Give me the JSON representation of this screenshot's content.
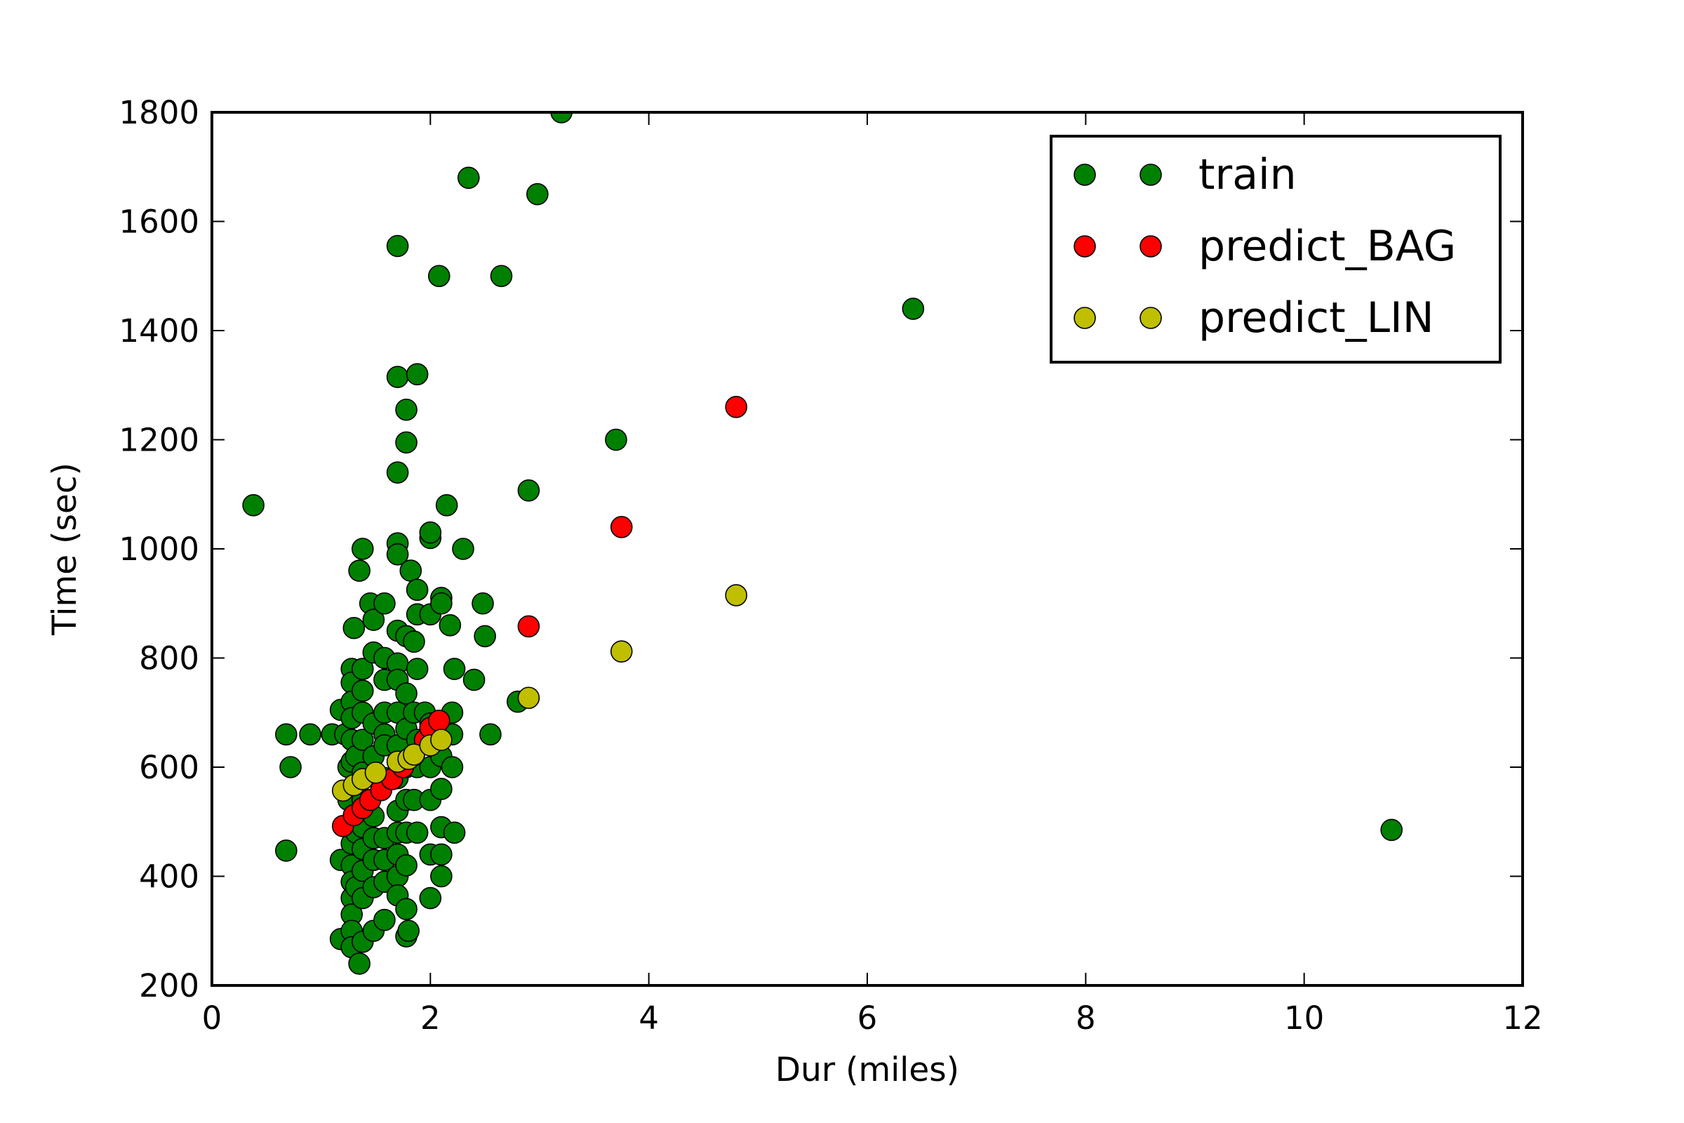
{
  "chart_data": {
    "type": "scatter",
    "title": "",
    "xlabel": "Dur (miles)",
    "ylabel": "Time (sec)",
    "xlim": [
      0,
      12
    ],
    "ylim": [
      200,
      1800
    ],
    "xticks": [
      "0",
      "2",
      "4",
      "6",
      "8",
      "10",
      "12"
    ],
    "yticks": [
      "200",
      "400",
      "600",
      "800",
      "1000",
      "1200",
      "1400",
      "1600",
      "1800"
    ],
    "grid": false,
    "legend_position": "top-right",
    "series": [
      {
        "name": "train",
        "color": "#008000",
        "points": [
          [
            0.38,
            1080
          ],
          [
            0.68,
            660
          ],
          [
            0.68,
            447
          ],
          [
            0.72,
            600
          ],
          [
            0.9,
            660
          ],
          [
            1.1,
            660
          ],
          [
            1.18,
            705
          ],
          [
            1.18,
            430
          ],
          [
            1.18,
            285
          ],
          [
            1.22,
            660
          ],
          [
            1.25,
            600
          ],
          [
            1.25,
            540
          ],
          [
            1.28,
            780
          ],
          [
            1.28,
            755
          ],
          [
            1.28,
            720
          ],
          [
            1.28,
            690
          ],
          [
            1.28,
            650
          ],
          [
            1.28,
            610
          ],
          [
            1.28,
            500
          ],
          [
            1.28,
            460
          ],
          [
            1.28,
            420
          ],
          [
            1.28,
            390
          ],
          [
            1.28,
            360
          ],
          [
            1.28,
            330
          ],
          [
            1.28,
            300
          ],
          [
            1.28,
            270
          ],
          [
            1.3,
            855
          ],
          [
            1.32,
            620
          ],
          [
            1.32,
            480
          ],
          [
            1.32,
            380
          ],
          [
            1.35,
            240
          ],
          [
            1.35,
            960
          ],
          [
            1.38,
            1000
          ],
          [
            1.38,
            780
          ],
          [
            1.38,
            740
          ],
          [
            1.38,
            700
          ],
          [
            1.38,
            650
          ],
          [
            1.38,
            590
          ],
          [
            1.38,
            540
          ],
          [
            1.38,
            490
          ],
          [
            1.38,
            450
          ],
          [
            1.38,
            410
          ],
          [
            1.38,
            360
          ],
          [
            1.38,
            280
          ],
          [
            1.45,
            900
          ],
          [
            1.48,
            870
          ],
          [
            1.48,
            810
          ],
          [
            1.48,
            680
          ],
          [
            1.48,
            620
          ],
          [
            1.48,
            510
          ],
          [
            1.48,
            470
          ],
          [
            1.48,
            430
          ],
          [
            1.48,
            380
          ],
          [
            1.48,
            300
          ],
          [
            1.58,
            900
          ],
          [
            1.58,
            800
          ],
          [
            1.58,
            760
          ],
          [
            1.58,
            700
          ],
          [
            1.58,
            660
          ],
          [
            1.58,
            640
          ],
          [
            1.58,
            580
          ],
          [
            1.58,
            470
          ],
          [
            1.58,
            430
          ],
          [
            1.58,
            390
          ],
          [
            1.58,
            320
          ],
          [
            1.7,
            1555
          ],
          [
            1.7,
            1315
          ],
          [
            1.7,
            1140
          ],
          [
            1.7,
            1010
          ],
          [
            1.7,
            990
          ],
          [
            1.7,
            850
          ],
          [
            1.7,
            790
          ],
          [
            1.7,
            760
          ],
          [
            1.7,
            700
          ],
          [
            1.7,
            640
          ],
          [
            1.7,
            580
          ],
          [
            1.7,
            520
          ],
          [
            1.7,
            480
          ],
          [
            1.7,
            440
          ],
          [
            1.7,
            400
          ],
          [
            1.7,
            365
          ],
          [
            1.78,
            1255
          ],
          [
            1.78,
            1195
          ],
          [
            1.78,
            840
          ],
          [
            1.78,
            735
          ],
          [
            1.78,
            670
          ],
          [
            1.78,
            600
          ],
          [
            1.78,
            540
          ],
          [
            1.78,
            480
          ],
          [
            1.78,
            420
          ],
          [
            1.78,
            340
          ],
          [
            1.78,
            290
          ],
          [
            1.8,
            300
          ],
          [
            1.82,
            960
          ],
          [
            1.85,
            830
          ],
          [
            1.85,
            700
          ],
          [
            1.85,
            540
          ],
          [
            1.88,
            1320
          ],
          [
            1.88,
            925
          ],
          [
            1.88,
            880
          ],
          [
            1.88,
            780
          ],
          [
            1.88,
            650
          ],
          [
            1.88,
            600
          ],
          [
            1.88,
            480
          ],
          [
            1.95,
            700
          ],
          [
            2.0,
            1020
          ],
          [
            2.0,
            1030
          ],
          [
            2.0,
            880
          ],
          [
            2.0,
            680
          ],
          [
            2.0,
            600
          ],
          [
            2.0,
            540
          ],
          [
            2.0,
            440
          ],
          [
            2.0,
            360
          ],
          [
            2.08,
            1500
          ],
          [
            2.1,
            910
          ],
          [
            2.1,
            900
          ],
          [
            2.1,
            660
          ],
          [
            2.1,
            620
          ],
          [
            2.1,
            560
          ],
          [
            2.1,
            490
          ],
          [
            2.1,
            440
          ],
          [
            2.1,
            400
          ],
          [
            2.15,
            1080
          ],
          [
            2.18,
            860
          ],
          [
            2.2,
            700
          ],
          [
            2.2,
            660
          ],
          [
            2.2,
            600
          ],
          [
            2.22,
            780
          ],
          [
            2.22,
            480
          ],
          [
            2.3,
            1000
          ],
          [
            2.35,
            1680
          ],
          [
            2.4,
            760
          ],
          [
            2.48,
            900
          ],
          [
            2.5,
            840
          ],
          [
            2.55,
            660
          ],
          [
            2.65,
            1500
          ],
          [
            2.8,
            720
          ],
          [
            2.9,
            1107
          ],
          [
            2.98,
            1650
          ],
          [
            3.2,
            1800
          ],
          [
            3.7,
            1200
          ],
          [
            6.42,
            1440
          ],
          [
            10.8,
            485
          ]
        ]
      },
      {
        "name": "predict_BAG",
        "color": "#ff0000",
        "points": [
          [
            1.2,
            492
          ],
          [
            1.3,
            512
          ],
          [
            1.38,
            525
          ],
          [
            1.45,
            540
          ],
          [
            1.55,
            558
          ],
          [
            1.65,
            578
          ],
          [
            1.75,
            600
          ],
          [
            1.85,
            622
          ],
          [
            1.95,
            650
          ],
          [
            2.0,
            672
          ],
          [
            2.08,
            685
          ],
          [
            2.9,
            858
          ],
          [
            3.75,
            1040
          ],
          [
            4.8,
            1260
          ]
        ]
      },
      {
        "name": "predict_LIN",
        "color": "#bfbf00",
        "points": [
          [
            1.2,
            557
          ],
          [
            1.3,
            567
          ],
          [
            1.38,
            578
          ],
          [
            1.5,
            590
          ],
          [
            1.7,
            610
          ],
          [
            1.8,
            615
          ],
          [
            1.85,
            623
          ],
          [
            2.0,
            640
          ],
          [
            2.1,
            650
          ],
          [
            2.9,
            727
          ],
          [
            3.75,
            812
          ],
          [
            4.8,
            915
          ]
        ]
      }
    ]
  }
}
